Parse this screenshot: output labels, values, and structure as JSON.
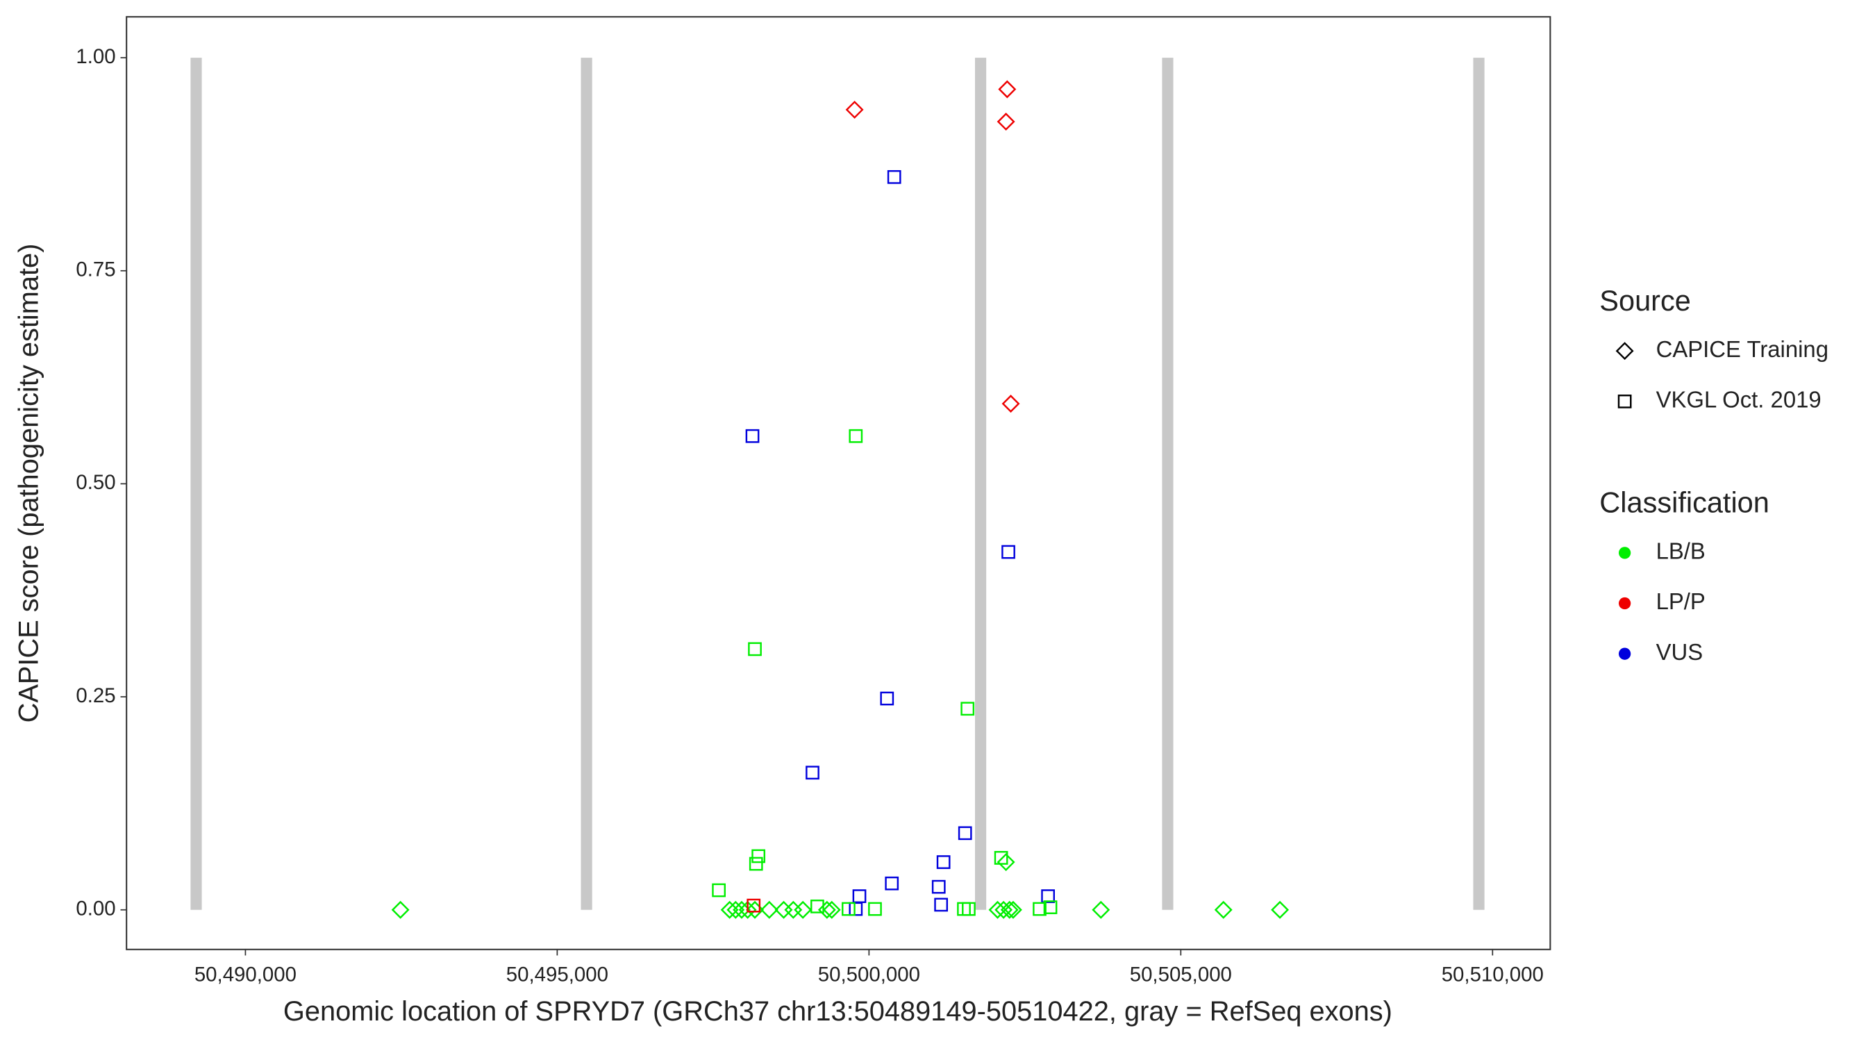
{
  "chart_data": {
    "type": "scatter",
    "xlabel": "Genomic location of SPRYD7 (GRCh37 chr13:50489149-50510422, gray = RefSeq exons)",
    "ylabel": "CAPICE score (pathogenicity estimate)",
    "xlim": [
      50488093,
      50510925
    ],
    "ylim": [
      -0.0465,
      1.048
    ],
    "xticks": [
      {
        "value": 50490000,
        "label": "50,490,000"
      },
      {
        "value": 50495000,
        "label": "50,495,000"
      },
      {
        "value": 50500000,
        "label": "50,500,000"
      },
      {
        "value": 50505000,
        "label": "50,505,000"
      },
      {
        "value": 50510000,
        "label": "50,510,000"
      }
    ],
    "yticks": [
      {
        "value": 0,
        "label": "0.00"
      },
      {
        "value": 0.25,
        "label": "0.25"
      },
      {
        "value": 0.5,
        "label": "0.50"
      },
      {
        "value": 0.75,
        "label": "0.75"
      },
      {
        "value": 1,
        "label": "1.00"
      }
    ],
    "exons": {
      "color": "#c8c8c8",
      "start": [
        50489120,
        50495380,
        50501700,
        50504700,
        50509690
      ],
      "end": [
        50489300,
        50495560,
        50501880,
        50504880,
        50509870
      ]
    },
    "shape_legend": {
      "title": "Source",
      "entries": [
        "CAPICE Training",
        "VKGL Oct. 2019"
      ],
      "shapes": [
        "diamond",
        "square"
      ]
    },
    "color_legend": {
      "title": "Classification",
      "entries": [
        "LB/B",
        "LP/P",
        "VUS"
      ],
      "colors": [
        "#00ee00",
        "#ee0000",
        "#0000dd"
      ]
    },
    "series": [
      {
        "shape": 0,
        "color": 0,
        "x": [
          50492486,
          50497765,
          50497861,
          50497958,
          50498054,
          50498170,
          50498401,
          50498632,
          50498786,
          50498940,
          50499326,
          50499403,
          50502062,
          50502158,
          50502254,
          50502312,
          50503719,
          50505684,
          50506590,
          50502197
        ],
        "values": [
          0,
          0,
          0,
          0,
          0,
          0,
          0,
          0,
          0,
          0,
          0,
          0,
          0,
          0,
          0,
          0,
          0,
          0,
          0,
          0.056
        ]
      },
      {
        "shape": 0,
        "color": 1,
        "x": [
          50499769,
          50502216,
          50502197,
          50502274
        ],
        "values": [
          0.939,
          0.963,
          0.925,
          0.594
        ]
      },
      {
        "shape": 1,
        "color": 1,
        "x": [
          50498150
        ],
        "values": [
          0.005
        ]
      },
      {
        "shape": 1,
        "color": 2,
        "x": [
          50500405,
          50498131,
          50502235,
          50500289,
          50499094,
          50501541,
          50501195,
          50501118,
          50500366,
          50499846,
          50502871,
          50501156,
          50499788
        ],
        "values": [
          0.86,
          0.556,
          0.42,
          0.248,
          0.161,
          0.09,
          0.056,
          0.027,
          0.031,
          0.016,
          0.016,
          0.006,
          0.001
        ]
      },
      {
        "shape": 1,
        "color": 0,
        "x": [
          50499788,
          50498170,
          50501580,
          50498227,
          50498189,
          50502119,
          50497592,
          50499171,
          50499672,
          50500096,
          50501522,
          50501599,
          50502736,
          50502909
        ],
        "values": [
          0.556,
          0.306,
          0.236,
          0.063,
          0.054,
          0.061,
          0.023,
          0.004,
          0.001,
          0.001,
          0.001,
          0.001,
          0.001,
          0.003
        ]
      }
    ]
  }
}
